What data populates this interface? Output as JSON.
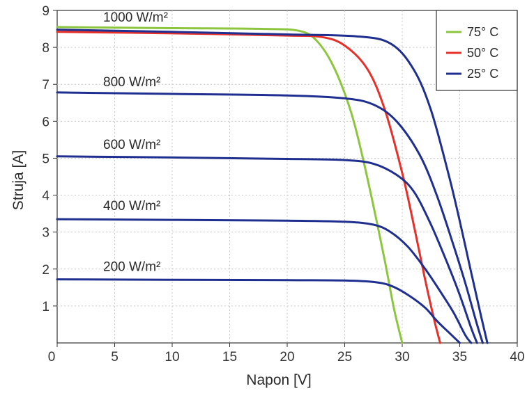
{
  "chart_data": {
    "type": "line",
    "title": "",
    "xlabel": "Napon [V]",
    "ylabel": "Struja [A]",
    "xlim": [
      0,
      40
    ],
    "ylim": [
      0,
      9
    ],
    "x_ticks": [
      0,
      5,
      10,
      15,
      20,
      25,
      30,
      35,
      40
    ],
    "y_ticks": [
      1,
      2,
      3,
      4,
      5,
      6,
      7,
      8,
      9
    ],
    "grid": true,
    "legend_position": "top-right",
    "legend": [
      {
        "label": "75° C",
        "color": "#8cc63f"
      },
      {
        "label": "50° C",
        "color": "#e8302a"
      },
      {
        "label": "25° C",
        "color": "#1f2f8f"
      }
    ],
    "curve_labels": [
      {
        "text": "1000 W/m²",
        "x": 4,
        "y": 8.7
      },
      {
        "text": "800 W/m²",
        "x": 4,
        "y": 6.95
      },
      {
        "text": "600 W/m²",
        "x": 4,
        "y": 5.25
      },
      {
        "text": "400 W/m²",
        "x": 4,
        "y": 3.6
      },
      {
        "text": "200 W/m²",
        "x": 4,
        "y": 1.95
      }
    ],
    "series": [
      {
        "name": "75° C",
        "irradiance": "1000 W/m²",
        "color": "#8cc63f",
        "x": [
          0,
          10,
          18,
          21,
          22.5,
          24,
          25.5,
          26.5,
          27.5,
          28.5,
          29.3,
          30
        ],
        "y": [
          8.55,
          8.52,
          8.5,
          8.45,
          8.2,
          7.5,
          6.3,
          5.1,
          3.7,
          2.2,
          0.9,
          0
        ]
      },
      {
        "name": "50° C",
        "irradiance": "1000 W/m²",
        "color": "#e8302a",
        "x": [
          0,
          10,
          20,
          23,
          25,
          27,
          28.5,
          30,
          31,
          32,
          32.8,
          33.3
        ],
        "y": [
          8.42,
          8.38,
          8.32,
          8.28,
          8.05,
          7.4,
          6.3,
          4.6,
          3.2,
          1.7,
          0.6,
          0
        ]
      },
      {
        "name": "25° C",
        "irradiance": "1000 W/m²",
        "color": "#1f2f8f",
        "x": [
          0,
          10,
          20,
          26,
          29,
          31,
          32.5,
          34,
          35,
          36,
          36.8,
          37.4
        ],
        "y": [
          8.48,
          8.42,
          8.35,
          8.3,
          8.1,
          7.4,
          6.3,
          4.6,
          3.3,
          1.9,
          0.8,
          0
        ]
      },
      {
        "name": "25° C",
        "irradiance": "800 W/m²",
        "color": "#1f2f8f",
        "x": [
          0,
          10,
          20,
          25,
          27.5,
          29.5,
          31.5,
          33,
          34.5,
          35.5,
          36.5,
          37
        ],
        "y": [
          6.78,
          6.74,
          6.7,
          6.62,
          6.45,
          6.0,
          5.1,
          4.0,
          2.6,
          1.6,
          0.5,
          0
        ]
      },
      {
        "name": "25° C",
        "irradiance": "600 W/m²",
        "color": "#1f2f8f",
        "x": [
          0,
          10,
          20,
          25,
          27.5,
          29.5,
          31,
          32.5,
          34,
          35,
          36,
          36.5
        ],
        "y": [
          5.05,
          5.02,
          4.98,
          4.95,
          4.85,
          4.55,
          4.1,
          3.2,
          2.1,
          1.3,
          0.4,
          0
        ]
      },
      {
        "name": "25° C",
        "irradiance": "400 W/m²",
        "color": "#1f2f8f",
        "x": [
          0,
          10,
          20,
          25,
          27.5,
          29,
          30.5,
          32,
          33.5,
          34.5,
          35.5,
          36
        ],
        "y": [
          3.35,
          3.33,
          3.31,
          3.28,
          3.2,
          3.0,
          2.6,
          2.0,
          1.3,
          0.8,
          0.2,
          0
        ]
      },
      {
        "name": "25° C",
        "irradiance": "200 W/m²",
        "color": "#1f2f8f",
        "x": [
          0,
          10,
          20,
          25,
          27.5,
          29,
          30.5,
          32,
          33,
          34,
          35
        ],
        "y": [
          1.72,
          1.71,
          1.7,
          1.69,
          1.65,
          1.55,
          1.3,
          0.95,
          0.6,
          0.3,
          0
        ]
      }
    ]
  }
}
